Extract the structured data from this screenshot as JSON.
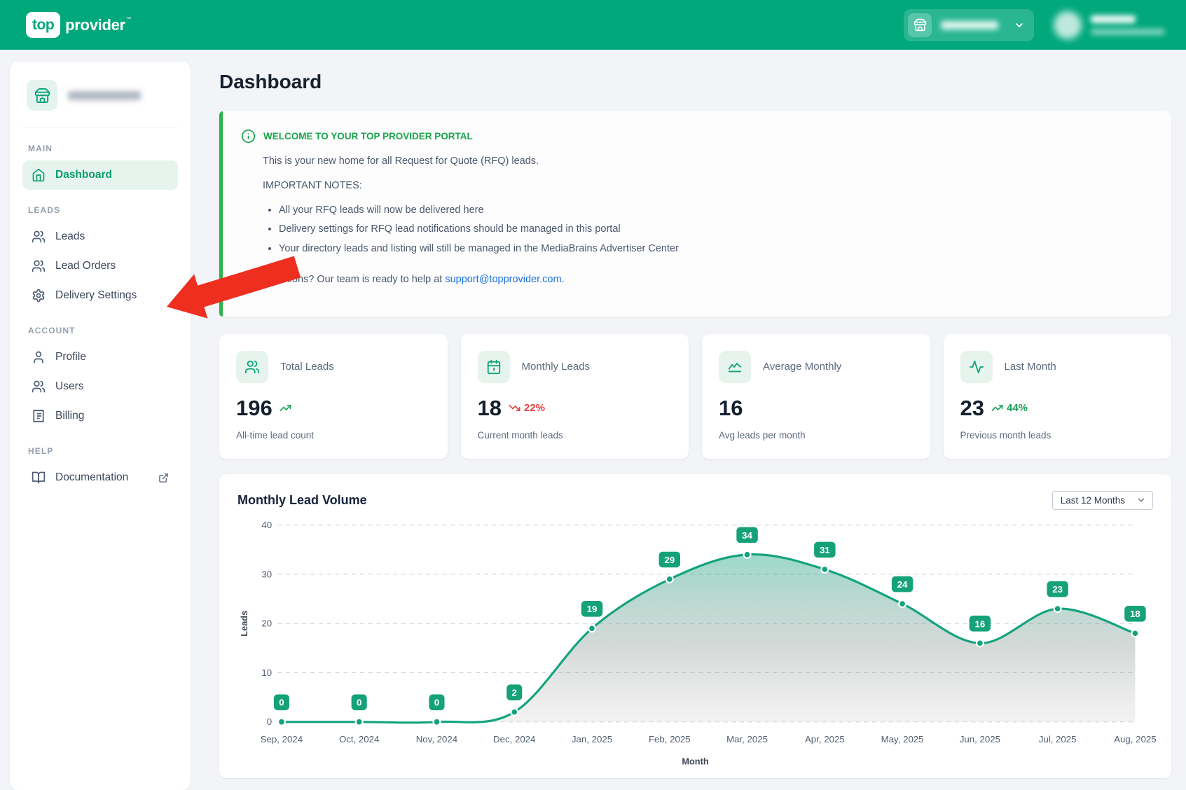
{
  "header": {
    "logo_top": "top",
    "logo_provider": "provider",
    "logo_tm": "™"
  },
  "sidebar": {
    "sections": [
      {
        "label": "MAIN",
        "items": [
          {
            "label": "Dashboard"
          }
        ]
      },
      {
        "label": "LEADS",
        "items": [
          {
            "label": "Leads"
          },
          {
            "label": "Lead Orders"
          },
          {
            "label": "Delivery Settings"
          }
        ]
      },
      {
        "label": "ACCOUNT",
        "items": [
          {
            "label": "Profile"
          },
          {
            "label": "Users"
          },
          {
            "label": "Billing"
          }
        ]
      },
      {
        "label": "HELP",
        "items": [
          {
            "label": "Documentation"
          }
        ]
      }
    ]
  },
  "page": {
    "title": "Dashboard"
  },
  "banner": {
    "title": "WELCOME TO YOUR TOP PROVIDER PORTAL",
    "intro": "This is your new home for all Request for Quote (RFQ) leads.",
    "notes_title": "IMPORTANT NOTES:",
    "bullets": [
      "All your RFQ leads will now be delivered here",
      "Delivery settings for RFQ lead notifications should be managed in this portal",
      "Your directory leads and listing will still be managed in the MediaBrains Advertiser Center"
    ],
    "questions_prefix": "Questions? Our team is ready to help at ",
    "support_email": "support@topprovider.com",
    "questions_suffix": "."
  },
  "stats": [
    {
      "label": "Total Leads",
      "value": "196",
      "trend": "up",
      "trend_text": "",
      "subtitle": "All-time lead count"
    },
    {
      "label": "Monthly Leads",
      "value": "18",
      "trend": "down",
      "trend_text": "22%",
      "subtitle": "Current month leads"
    },
    {
      "label": "Average Monthly",
      "value": "16",
      "trend": null,
      "trend_text": "",
      "subtitle": "Avg leads per month"
    },
    {
      "label": "Last Month",
      "value": "23",
      "trend": "up",
      "trend_text": "44%",
      "subtitle": "Previous month leads"
    }
  ],
  "chart_card": {
    "title": "Monthly Lead Volume",
    "range_selector": "Last 12 Months"
  },
  "chart_data": {
    "type": "area",
    "x": [
      "Sep, 2024",
      "Oct, 2024",
      "Nov, 2024",
      "Dec, 2024",
      "Jan, 2025",
      "Feb, 2025",
      "Mar, 2025",
      "Apr, 2025",
      "May, 2025",
      "Jun, 2025",
      "Jul, 2025",
      "Aug, 2025"
    ],
    "values": [
      0,
      0,
      0,
      2,
      19,
      29,
      34,
      31,
      24,
      16,
      23,
      18
    ],
    "title": "Monthly Lead Volume",
    "xlabel": "Month",
    "ylabel": "Leads",
    "ylim": [
      0,
      40
    ],
    "yticks": [
      0,
      10,
      20,
      30,
      40
    ],
    "grid": true,
    "legend": false,
    "point_labels": true,
    "line_color": "#12a37e",
    "badge_color": "#16a279"
  },
  "colors": {
    "brand_green": "#00a87c",
    "chart_green": "#12a37e",
    "banner_green": "#18a54b",
    "banner_border": "#2eb24b",
    "trend_up": "#1ca05c",
    "trend_down": "#e0403c",
    "link_blue": "#1a6fdd",
    "arrow_red": "#ee2e1f"
  }
}
